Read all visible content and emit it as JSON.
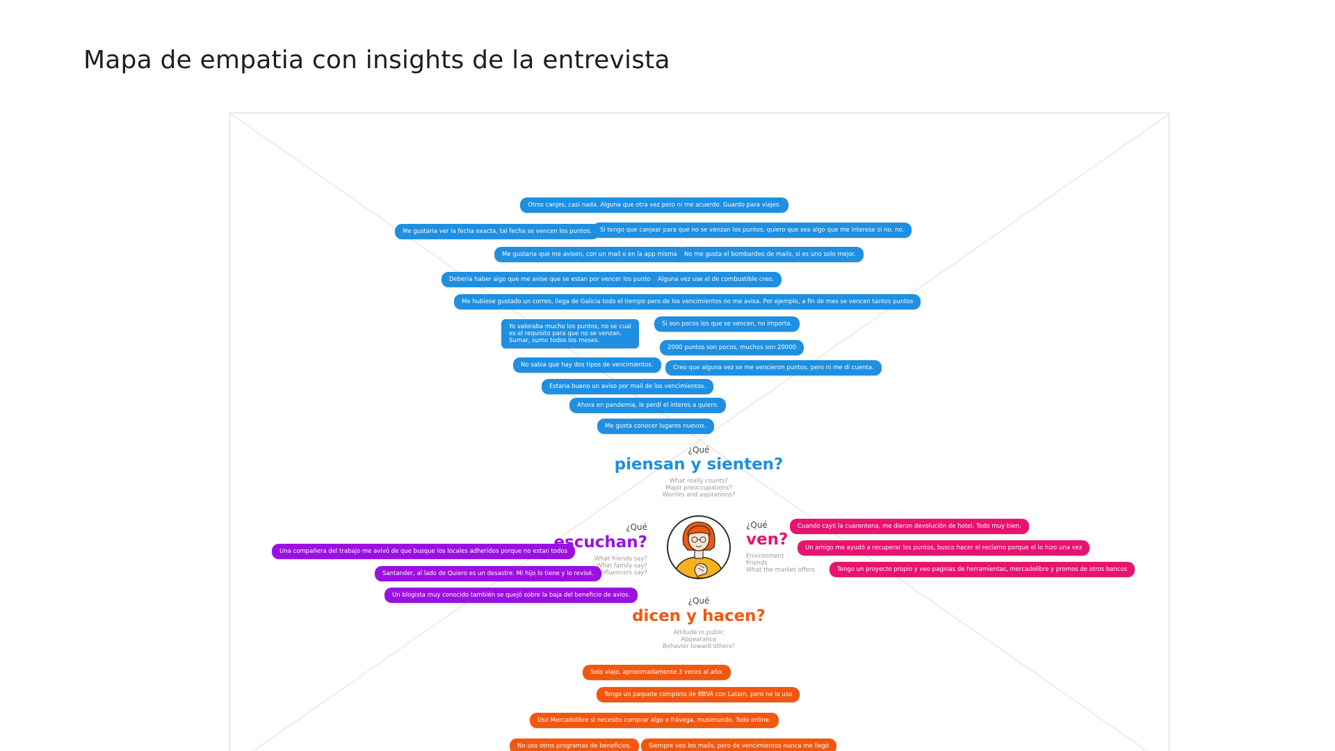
{
  "page": {
    "title": "Mapa de empatia con insights de la entrevista"
  },
  "colors": {
    "piensan": "#1e8fe1",
    "ven": "#e8136f",
    "escuchan": "#9b10e0",
    "dicen": "#f2570f"
  },
  "quadrants": {
    "piensan": {
      "prefix": "¿Qué",
      "title": "piensan y sienten?",
      "hints": [
        "What really counts?",
        "Major preoccupations?",
        "Worries and aspirations?"
      ],
      "notes": [
        "Otros canjes, casi nada. Alguna que otra vez pero ni me acuerdo. Guardo para viajes.",
        "Me gustaria ver la fecha exacta, tal fecha se vencen los puntos.",
        "Si tengo que canjear para que no se venzan los puntos, quiero que sea algo que me interese si no, no.",
        "Me gustaria que me avisen, con un mail o en la app misma.",
        "No me gusta el bombardeo de mails, si es uno solo mejor.",
        "Deberia haber algo que me avise que se estan por vencer los puntos",
        "Alguna vez use el de combustible creo.",
        "Me hubiese gustado un correo, llega de Galicia todo el tiempo pero de los vencimientos no me avisa. Por ejemplo, a fin de mes se vencen tantos puntos",
        "Yo valoraba mucho los puntos, no se cual es el requisito para que no se venzan. Sumar, sumo todos los meses.",
        "Si son pocos los que se vencen, no importa.",
        "2000 puntos son pocos, muchos son 20000",
        "No sabia que hay dos tipos de vencimientos.",
        "Creo que alguna vez se me vencieron puntos, pero ni me di cuenta.",
        "Estaria bueno un aviso por mail de los vencimientos.",
        "Ahora en pandemia, le perdí el interes a quiero.",
        "Me gusta conocer lugares nuevos."
      ]
    },
    "ven": {
      "prefix": "¿Qué",
      "title": "ven?",
      "hints": [
        "Environment",
        "Friends",
        "What the market offers"
      ],
      "notes": [
        "Cuando cayó la cuarentena, me dieron devolución de hotel. Todo muy bien.",
        "Un amigo me ayudó a recuperar los puntos, busco hacer el reclamo porque el lo hizo una vez",
        "Tengo un proyecto propio y veo paginas de herramientas, mercadolibre y promos de otros bancos"
      ]
    },
    "escuchan": {
      "prefix": "¿Qué",
      "title": "escuchan?",
      "hints": [
        "What friends say?",
        "What family say?",
        "What influencers say?"
      ],
      "notes": [
        "Una compañera del trabajo me avivó de que busque los locales adheridos porque no estan todos",
        "Santander, al lado de Quiero es un desastre. Mi hijo lo tiene y lo revisé.",
        "Un blogista muy conocido también se quejó sobre la baja del beneficio de avios."
      ]
    },
    "dicen": {
      "prefix": "¿Qué",
      "title": "dicen y hacen?",
      "hints": [
        "Attitude in public",
        "Appearance",
        "Behavior toward others?"
      ],
      "notes": [
        "Solo viajo, aproximadamente 3 veces al año.",
        "Tengo un paquete completo de BBVA con Latam, pero no lo uso",
        "Uso Mercadolibre si necesito comprar algo o frávega, musimundo. Todo online.",
        "No uso otros programas de beneficios.",
        "Siempre veo los mails, pero de vencimientos nunca me llegó"
      ]
    }
  }
}
